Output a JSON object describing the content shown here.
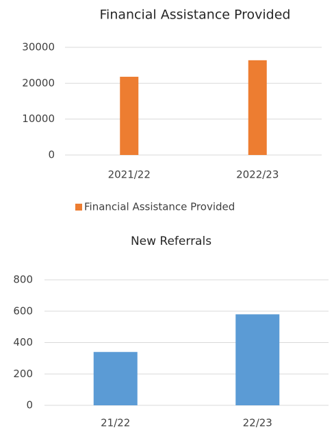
{
  "chart_data": [
    {
      "type": "bar",
      "title": "Financial Assistance Provided",
      "categories": [
        "2021/22",
        "2022/23"
      ],
      "series": [
        {
          "name": "Financial Assistance Provided",
          "color": "#ed7d31",
          "values": [
            21800,
            26400
          ]
        }
      ],
      "ylim": [
        0,
        30000
      ],
      "yticks": [
        0,
        10000,
        20000,
        30000
      ],
      "grid": true,
      "legend": "bottom"
    },
    {
      "type": "bar",
      "title": "New Referrals",
      "categories": [
        "21/22",
        "22/23"
      ],
      "values": [
        340,
        580
      ],
      "color": "#5b9bd5",
      "ylim": [
        0,
        800
      ],
      "yticks": [
        0,
        200,
        400,
        600,
        800
      ],
      "grid": true
    }
  ]
}
